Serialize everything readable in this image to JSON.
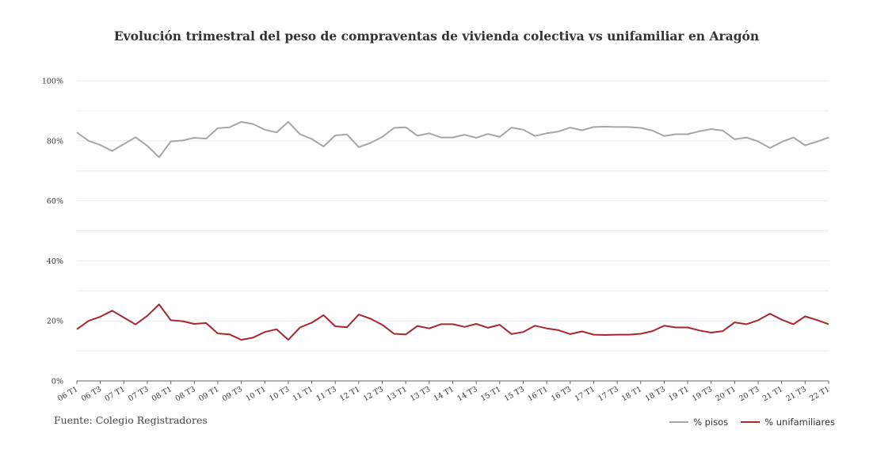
{
  "chart_data": {
    "type": "line",
    "title": "Evolución trimestral del peso de compraventas de vivienda colectiva vs unifamiliar en Aragón",
    "source": "Fuente: Colegio Registradores",
    "ylim": [
      0,
      100
    ],
    "yticks": [
      "0%",
      "20%",
      "40%",
      "60%",
      "80%",
      "100%"
    ],
    "grid": true,
    "legend_position": "bottom-right",
    "x": [
      "06 T1",
      "06 T2",
      "06 T3",
      "06 T4",
      "07 T1",
      "07 T2",
      "07 T3",
      "07 T4",
      "08 T1",
      "08 T2",
      "08 T3",
      "08 T4",
      "09 T1",
      "09 T2",
      "09 T3",
      "09 T4",
      "10 T1",
      "10 T2",
      "10 T3",
      "10 T4",
      "11 T1",
      "11 T2",
      "11 T3",
      "11 T4",
      "12 T1",
      "12 T2",
      "12 T3",
      "12 T4",
      "13 T1",
      "13 T2",
      "13 T3",
      "13 T4",
      "14 T1",
      "14 T2",
      "14 T3",
      "14 T4",
      "15 T1",
      "15 T2",
      "15 T3",
      "15 T4",
      "16 T1",
      "16 T2",
      "16 T3",
      "16 T4",
      "17 T1",
      "17 T2",
      "17 T3",
      "17 T4",
      "18 T1",
      "18 T2",
      "18 T3",
      "18 T4",
      "19 T1",
      "19 T2",
      "19 T3",
      "19 T4",
      "20 T1",
      "20 T2",
      "20 T3",
      "20 T4",
      "21 T1",
      "21 T2",
      "21 T3",
      "21 T4",
      "22 T1"
    ],
    "xtick_labels": [
      "06 T1",
      "06 T3",
      "07 T1",
      "07 T3",
      "08 T1",
      "08 T3",
      "09 T1",
      "09 T3",
      "10 T1",
      "10 T3",
      "11 T1",
      "11 T3",
      "12 T1",
      "12 T3",
      "13 T1",
      "13 T3",
      "14 T1",
      "14 T3",
      "15 T1",
      "15 T3",
      "16 T1",
      "16 T3",
      "17 T1",
      "17 T3",
      "18 T1",
      "18 T3",
      "19 T1",
      "19 T3",
      "20 T1",
      "20 T3",
      "21 T1",
      "21 T3",
      "22 T1"
    ],
    "series": [
      {
        "name": "% pisos",
        "color": "#a6a6a6",
        "values": [
          82.8,
          80.0,
          78.6,
          76.6,
          78.9,
          81.2,
          78.3,
          74.5,
          79.8,
          80.1,
          81.0,
          80.7,
          84.2,
          84.5,
          86.3,
          85.6,
          83.7,
          82.8,
          86.3,
          82.2,
          80.6,
          78.1,
          81.8,
          82.1,
          77.9,
          79.3,
          81.3,
          84.3,
          84.5,
          81.7,
          82.5,
          81.1,
          81.1,
          82.0,
          81.0,
          82.3,
          81.3,
          84.4,
          83.7,
          81.6,
          82.5,
          83.1,
          84.4,
          83.5,
          84.6,
          84.7,
          84.6,
          84.6,
          84.3,
          83.4,
          81.6,
          82.2,
          82.2,
          83.2,
          83.9,
          83.4,
          80.5,
          81.1,
          79.8,
          77.6,
          79.6,
          81.1,
          78.5,
          79.7,
          81.1
        ]
      },
      {
        "name": "% unifamiliares",
        "color": "#a8262f",
        "values": [
          17.2,
          20.0,
          21.4,
          23.4,
          21.1,
          18.8,
          21.7,
          25.5,
          20.2,
          19.9,
          19.0,
          19.3,
          15.8,
          15.5,
          13.7,
          14.4,
          16.3,
          17.2,
          13.7,
          17.8,
          19.4,
          21.9,
          18.2,
          17.9,
          22.1,
          20.7,
          18.7,
          15.7,
          15.5,
          18.3,
          17.5,
          18.9,
          18.9,
          18.0,
          19.0,
          17.7,
          18.7,
          15.6,
          16.3,
          18.4,
          17.5,
          16.9,
          15.6,
          16.5,
          15.4,
          15.3,
          15.4,
          15.4,
          15.7,
          16.6,
          18.4,
          17.8,
          17.8,
          16.8,
          16.1,
          16.6,
          19.5,
          18.9,
          20.2,
          22.4,
          20.4,
          18.9,
          21.5,
          20.3,
          18.9
        ]
      }
    ]
  }
}
